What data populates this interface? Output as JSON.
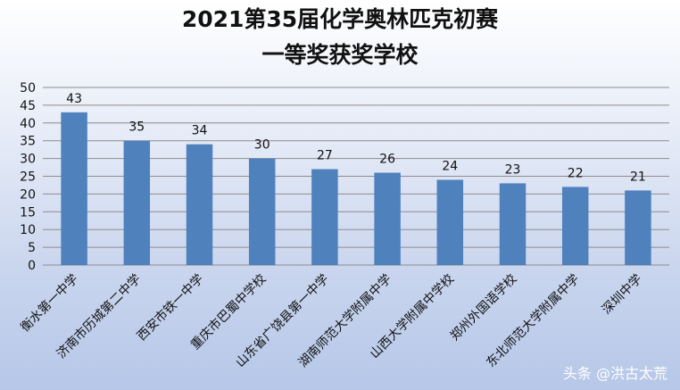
{
  "chart_data": {
    "type": "bar",
    "title_lines": [
      "2021第35届化学奥林匹克初赛",
      "一等奖获奖学校"
    ],
    "categories": [
      "衡水第一中学",
      "济南市历城第二中学",
      "西安市铁一中学",
      "重庆市巴蜀中学校",
      "山东省广饶县第一中学",
      "湖南师范大学附属中学",
      "山西大学附属中学校",
      "郑州外国语学校",
      "东北师范大学附属中学",
      "深圳中学"
    ],
    "values": [
      43,
      35,
      34,
      30,
      27,
      26,
      24,
      23,
      22,
      21
    ],
    "ylim": [
      0,
      50
    ],
    "yticks": [
      0,
      5,
      10,
      15,
      20,
      25,
      30,
      35,
      40,
      45,
      50
    ],
    "xlabel": "",
    "ylabel": "",
    "grid": true,
    "legend": "none",
    "bar_color": "#4f81bd",
    "grid_color": "#8c8c8c"
  },
  "watermark": "头条 @洪古太荒"
}
